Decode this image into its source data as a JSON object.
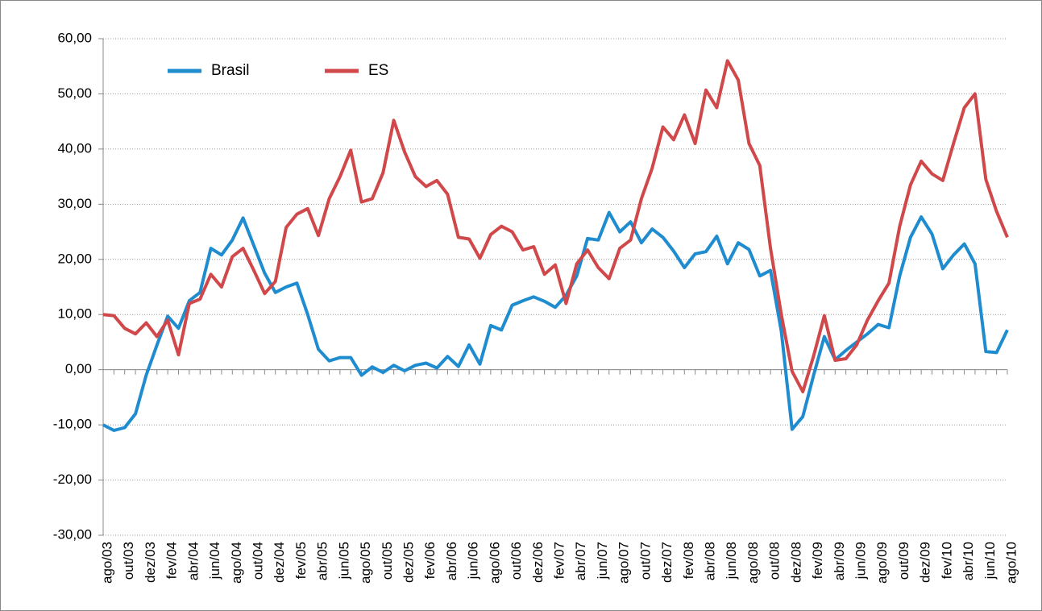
{
  "chart_data": {
    "type": "line",
    "categories": [
      "ago/03",
      null,
      "out/03",
      null,
      "dez/03",
      null,
      "fev/04",
      null,
      "abr/04",
      null,
      "jun/04",
      null,
      "ago/04",
      null,
      "out/04",
      null,
      "dez/04",
      null,
      "fev/05",
      null,
      "abr/05",
      null,
      "jun/05",
      null,
      "ago/05",
      null,
      "out/05",
      null,
      "dez/05",
      null,
      "fev/06",
      null,
      "abr/06",
      null,
      "jun/06",
      null,
      "ago/06",
      null,
      "out/06",
      null,
      "dez/06",
      null,
      "fev/07",
      null,
      "abr/07",
      null,
      "jun/07",
      null,
      "ago/07",
      null,
      "out/07",
      null,
      "dez/07",
      null,
      "fev/08",
      null,
      "abr/08",
      null,
      "jun/08",
      null,
      "ago/08",
      null,
      "out/08",
      null,
      "dez/08",
      null,
      "fev/09",
      null,
      "abr/09",
      null,
      "jun/09",
      null,
      "ago/09",
      null,
      "out/09",
      null,
      "dez/09",
      null,
      "fev/10",
      null,
      "abr/10",
      null,
      "jun/10",
      null,
      "ago/10"
    ],
    "series": [
      {
        "name": "Brasil",
        "color": "#1f8ccf",
        "values": [
          -10,
          -11,
          -10.5,
          -8,
          -1,
          4.5,
          9.7,
          7.5,
          12.5,
          14,
          22,
          20.8,
          23.5,
          27.5,
          22.5,
          17.5,
          14,
          15,
          15.7,
          10,
          3.7,
          1.6,
          2.2,
          2.2,
          -1,
          0.5,
          -0.5,
          0.8,
          -0.2,
          0.8,
          1.2,
          0.3,
          2.4,
          0.6,
          4.5,
          1,
          8,
          7.2,
          11.7,
          12.5,
          13.2,
          12.4,
          11.3,
          13.5,
          17,
          23.8,
          23.5,
          28.5,
          25,
          26.8,
          23,
          25.5,
          24,
          21.5,
          18.5,
          21,
          21.4,
          24.2,
          19.2,
          23,
          21.8,
          17,
          18,
          7,
          -10.8,
          -8.5,
          -1,
          6,
          1.8,
          3.5,
          5,
          6.5,
          8.2,
          7.6,
          17,
          24,
          27.7,
          24.6,
          18.3,
          20.8,
          22.8,
          19.2,
          3.3,
          3.1,
          7.2
        ]
      },
      {
        "name": "ES",
        "color": "#d0484a",
        "values": [
          10,
          9.8,
          7.5,
          6.5,
          8.5,
          6,
          9,
          2.7,
          12,
          12.8,
          17.3,
          15,
          20.5,
          22,
          18,
          13.8,
          16,
          25.8,
          28.2,
          29.2,
          24.3,
          31,
          35,
          39.8,
          30.4,
          31,
          35.7,
          45.2,
          39.5,
          35,
          33.2,
          34.3,
          31.8,
          24,
          23.7,
          20.2,
          24.5,
          26,
          25,
          21.7,
          22.3,
          17.3,
          19,
          12,
          19.2,
          21.7,
          18.5,
          16.5,
          22,
          23.5,
          31,
          36.5,
          44,
          41.7,
          46.2,
          41,
          50.7,
          47.5,
          56,
          52.5,
          41,
          37,
          22,
          10,
          -0.3,
          -4,
          2.5,
          9.8,
          1.7,
          2,
          4.5,
          9,
          12.5,
          15.7,
          26,
          33.5,
          37.8,
          35.5,
          34.3,
          41,
          47.5,
          50,
          34.5,
          28.7,
          24
        ]
      }
    ],
    "ylim": [
      -30,
      60
    ],
    "yticks": [
      {
        "value": -30,
        "label": "-30,00"
      },
      {
        "value": -20,
        "label": "-20,00"
      },
      {
        "value": -10,
        "label": "-10,00"
      },
      {
        "value": 0,
        "label": "0,00"
      },
      {
        "value": 10,
        "label": "10,00"
      },
      {
        "value": 20,
        "label": "20,00"
      },
      {
        "value": 30,
        "label": "30,00"
      },
      {
        "value": 40,
        "label": "40,00"
      },
      {
        "value": 50,
        "label": "50,00"
      },
      {
        "value": 60,
        "label": "60,00"
      }
    ],
    "grid": true
  }
}
